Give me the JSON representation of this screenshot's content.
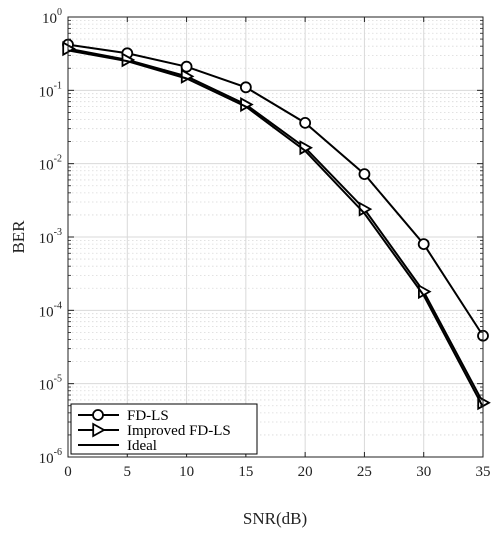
{
  "chart_data": {
    "type": "line",
    "xlabel": "SNR(dB)",
    "ylabel": "BER",
    "x": [
      0,
      5,
      10,
      15,
      20,
      25,
      30,
      35
    ],
    "xlim": [
      0,
      35
    ],
    "xticks": [
      0,
      5,
      10,
      15,
      20,
      25,
      30,
      35
    ],
    "ylim": [
      1e-06,
      1
    ],
    "yscale": "log",
    "yticks": [
      {
        "base": "10",
        "exp": "-6"
      },
      {
        "base": "10",
        "exp": "-5"
      },
      {
        "base": "10",
        "exp": "-4"
      },
      {
        "base": "10",
        "exp": "-3"
      },
      {
        "base": "10",
        "exp": "-2"
      },
      {
        "base": "10",
        "exp": "-1"
      },
      {
        "base": "10",
        "exp": "0"
      }
    ],
    "grid": true,
    "legend_position": "bottom-left",
    "series": [
      {
        "name": "FD-LS",
        "marker": "circle",
        "values": [
          0.42,
          0.32,
          0.21,
          0.11,
          0.036,
          0.0072,
          0.0008,
          4.5e-05
        ]
      },
      {
        "name": "Improved FD-LS",
        "marker": "triangle-right",
        "values": [
          0.37,
          0.26,
          0.155,
          0.064,
          0.0165,
          0.0024,
          0.00018,
          5.5e-06
        ]
      },
      {
        "name": "Ideal",
        "marker": "none",
        "values": [
          0.35,
          0.25,
          0.145,
          0.06,
          0.015,
          0.0021,
          0.00016,
          4.8e-06
        ]
      }
    ],
    "colors": {
      "line": "#000000",
      "grid": "#d9d9d9",
      "axes": "#222222"
    }
  }
}
